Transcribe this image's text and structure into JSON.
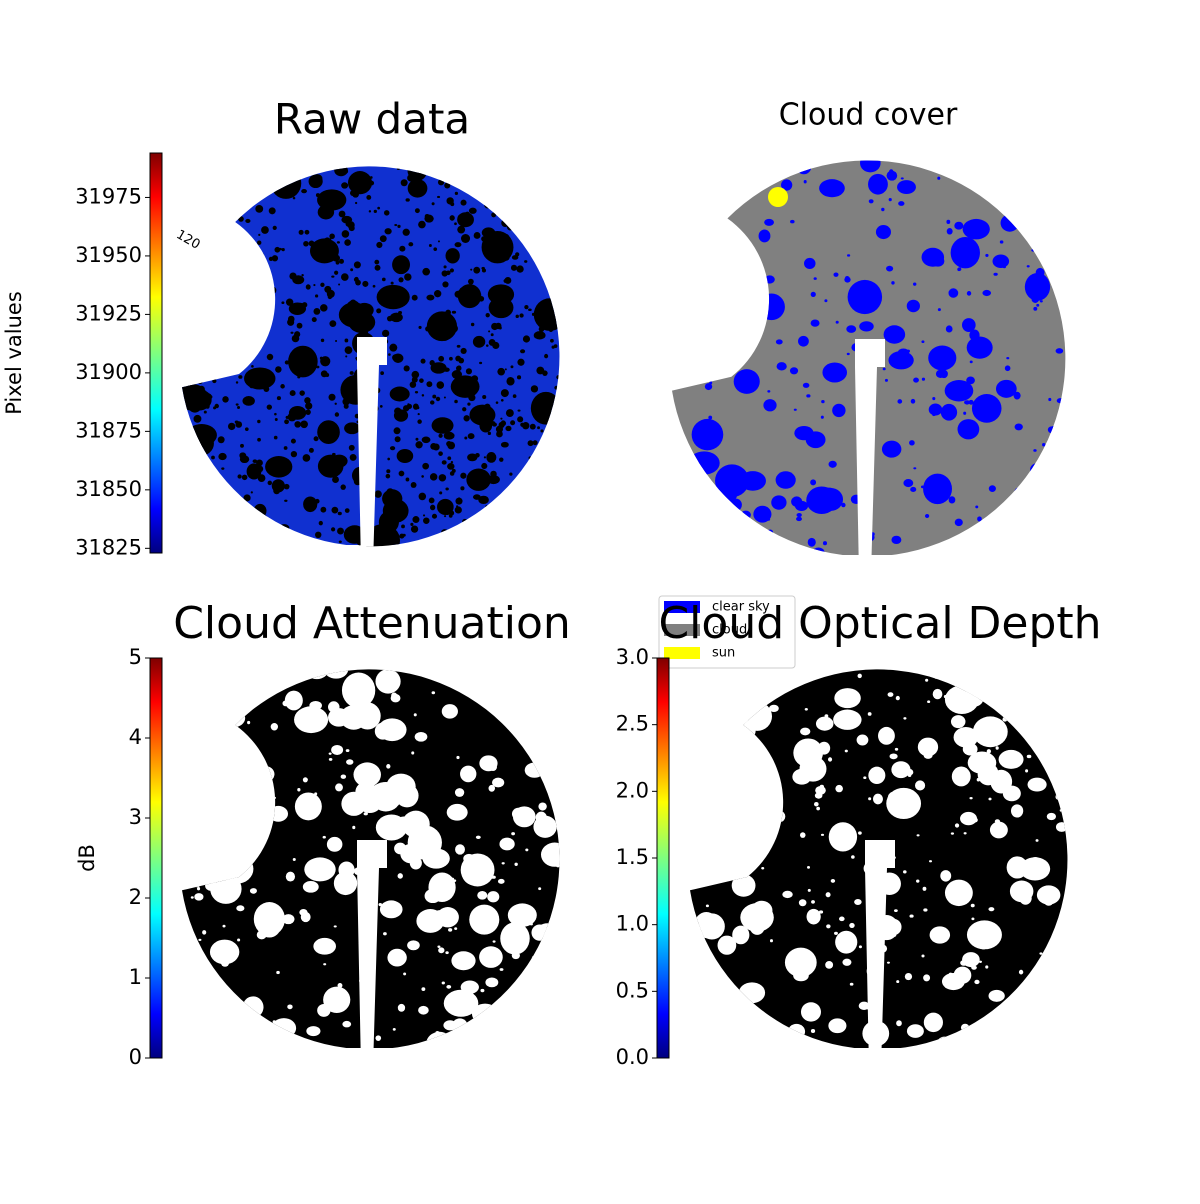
{
  "chart_data": [
    {
      "type": "image",
      "title": "Raw data",
      "colormap": "jet",
      "colorbar_label": "Pixel values",
      "clim": [
        31823,
        31994
      ],
      "cticks": [
        31825,
        31850,
        31875,
        31900,
        31925,
        31950,
        31975
      ],
      "annotation": "120"
    },
    {
      "type": "mask",
      "title": "Cloud cover",
      "legend": [
        {
          "name": "clear sky",
          "color": "#0000ff"
        },
        {
          "name": "cloud",
          "color": "#808080"
        },
        {
          "name": "sun",
          "color": "#ffff00"
        }
      ]
    },
    {
      "type": "image",
      "title": "Cloud Attenuation",
      "colormap": "jet",
      "colorbar_label": "dB",
      "clim": [
        0,
        5
      ],
      "cticks": [
        0,
        1,
        2,
        3,
        4,
        5
      ]
    },
    {
      "type": "image",
      "title": "Cloud Optical Depth",
      "colormap": "jet",
      "clim": [
        0,
        3
      ],
      "cticks": [
        {
          "value": 0,
          "label": "0.0"
        },
        0.5,
        {
          "value": 1,
          "label": "1.0"
        },
        1.5,
        {
          "value": 2,
          "label": "2.0"
        },
        2.5,
        {
          "value": 3,
          "label": "3.0"
        }
      ]
    }
  ]
}
